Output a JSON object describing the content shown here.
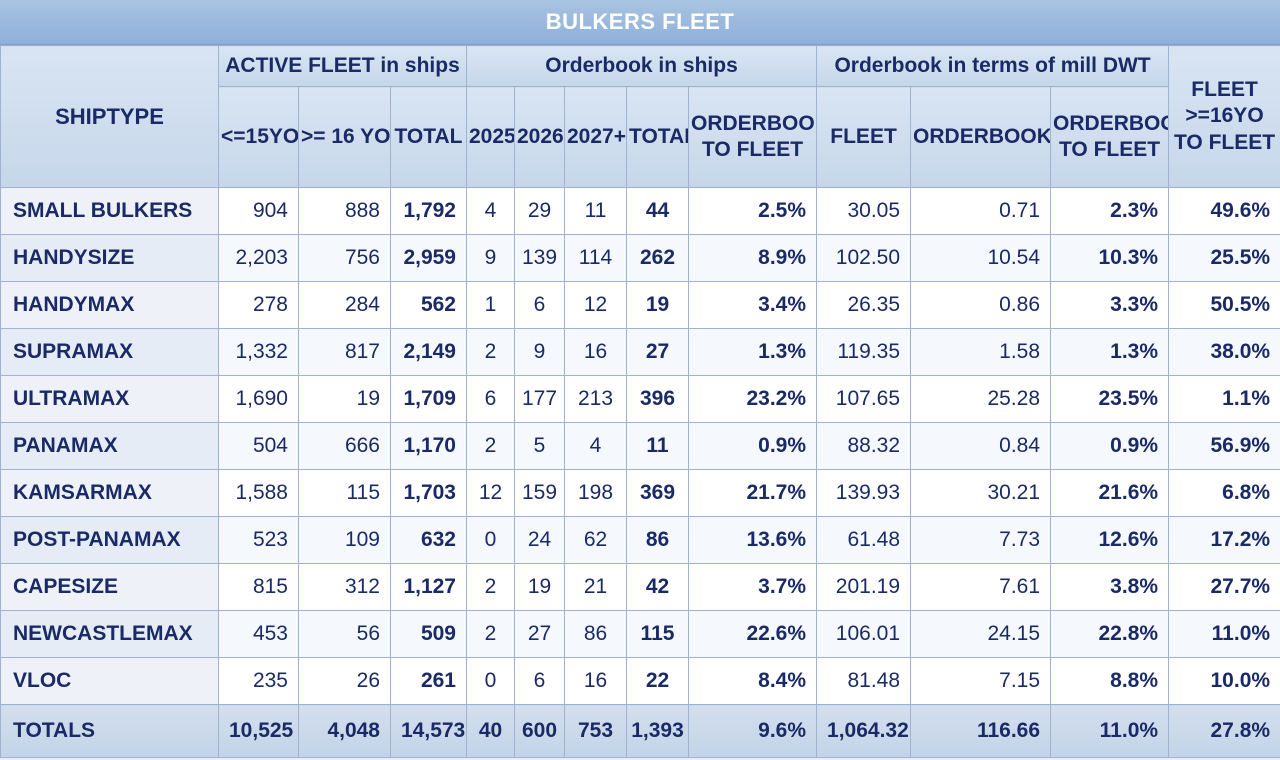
{
  "title": "BULKERS FLEET",
  "header": {
    "shiptype": "SHIPTYPE",
    "group_active": "ACTIVE FLEET in ships",
    "group_orderbook_ships": "Orderbook in ships",
    "group_orderbook_dwt": "Orderbook in terms of mill DWT",
    "fleet_ratio": "FLEET >=16YO TO FLEET",
    "le15": "<=15YO",
    "ge16": ">= 16 YO",
    "total": "TOTAL",
    "y2025": "2025",
    "y2026": "2026",
    "y2027": "2027+",
    "ob_total": "TOTAL",
    "ob_to_fleet": "ORDERBOOK TO FLEET",
    "dwt_fleet": "FLEET",
    "dwt_orderbook": "ORDERBOOK",
    "dwt_ob_to_fleet": "ORDERBOOK TO FLEET"
  },
  "rows": [
    {
      "name": "SMALL BULKERS",
      "le15": "904",
      "ge16": "888",
      "total": "1,792",
      "y2025": "4",
      "y2026": "29",
      "y2027": "11",
      "ob_total": "44",
      "ob_pct": "2.5%",
      "dwt_fleet": "30.05",
      "dwt_ob": "0.71",
      "dwt_pct": "2.3%",
      "old_pct": "49.6%"
    },
    {
      "name": "HANDYSIZE",
      "le15": "2,203",
      "ge16": "756",
      "total": "2,959",
      "y2025": "9",
      "y2026": "139",
      "y2027": "114",
      "ob_total": "262",
      "ob_pct": "8.9%",
      "dwt_fleet": "102.50",
      "dwt_ob": "10.54",
      "dwt_pct": "10.3%",
      "old_pct": "25.5%"
    },
    {
      "name": "HANDYMAX",
      "le15": "278",
      "ge16": "284",
      "total": "562",
      "y2025": "1",
      "y2026": "6",
      "y2027": "12",
      "ob_total": "19",
      "ob_pct": "3.4%",
      "dwt_fleet": "26.35",
      "dwt_ob": "0.86",
      "dwt_pct": "3.3%",
      "old_pct": "50.5%"
    },
    {
      "name": "SUPRAMAX",
      "le15": "1,332",
      "ge16": "817",
      "total": "2,149",
      "y2025": "2",
      "y2026": "9",
      "y2027": "16",
      "ob_total": "27",
      "ob_pct": "1.3%",
      "dwt_fleet": "119.35",
      "dwt_ob": "1.58",
      "dwt_pct": "1.3%",
      "old_pct": "38.0%"
    },
    {
      "name": "ULTRAMAX",
      "le15": "1,690",
      "ge16": "19",
      "total": "1,709",
      "y2025": "6",
      "y2026": "177",
      "y2027": "213",
      "ob_total": "396",
      "ob_pct": "23.2%",
      "dwt_fleet": "107.65",
      "dwt_ob": "25.28",
      "dwt_pct": "23.5%",
      "old_pct": "1.1%"
    },
    {
      "name": "PANAMAX",
      "le15": "504",
      "ge16": "666",
      "total": "1,170",
      "y2025": "2",
      "y2026": "5",
      "y2027": "4",
      "ob_total": "11",
      "ob_pct": "0.9%",
      "dwt_fleet": "88.32",
      "dwt_ob": "0.84",
      "dwt_pct": "0.9%",
      "old_pct": "56.9%"
    },
    {
      "name": "KAMSARMAX",
      "le15": "1,588",
      "ge16": "115",
      "total": "1,703",
      "y2025": "12",
      "y2026": "159",
      "y2027": "198",
      "ob_total": "369",
      "ob_pct": "21.7%",
      "dwt_fleet": "139.93",
      "dwt_ob": "30.21",
      "dwt_pct": "21.6%",
      "old_pct": "6.8%"
    },
    {
      "name": "POST-PANAMAX",
      "le15": "523",
      "ge16": "109",
      "total": "632",
      "y2025": "0",
      "y2026": "24",
      "y2027": "62",
      "ob_total": "86",
      "ob_pct": "13.6%",
      "dwt_fleet": "61.48",
      "dwt_ob": "7.73",
      "dwt_pct": "12.6%",
      "old_pct": "17.2%"
    },
    {
      "name": "CAPESIZE",
      "le15": "815",
      "ge16": "312",
      "total": "1,127",
      "y2025": "2",
      "y2026": "19",
      "y2027": "21",
      "ob_total": "42",
      "ob_pct": "3.7%",
      "dwt_fleet": "201.19",
      "dwt_ob": "7.61",
      "dwt_pct": "3.8%",
      "old_pct": "27.7%"
    },
    {
      "name": "NEWCASTLEMAX",
      "le15": "453",
      "ge16": "56",
      "total": "509",
      "y2025": "2",
      "y2026": "27",
      "y2027": "86",
      "ob_total": "115",
      "ob_pct": "22.6%",
      "dwt_fleet": "106.01",
      "dwt_ob": "24.15",
      "dwt_pct": "22.8%",
      "old_pct": "11.0%"
    },
    {
      "name": "VLOC",
      "le15": "235",
      "ge16": "26",
      "total": "261",
      "y2025": "0",
      "y2026": "6",
      "y2027": "16",
      "ob_total": "22",
      "ob_pct": "8.4%",
      "dwt_fleet": "81.48",
      "dwt_ob": "7.15",
      "dwt_pct": "8.8%",
      "old_pct": "10.0%"
    }
  ],
  "totals": {
    "name": "TOTALS",
    "le15": "10,525",
    "ge16": "4,048",
    "total": "14,573",
    "y2025": "40",
    "y2026": "600",
    "y2027": "753",
    "ob_total": "1,393",
    "ob_pct": "9.6%",
    "dwt_fleet": "1,064.32",
    "dwt_ob": "116.66",
    "dwt_pct": "11.0%",
    "old_pct": "27.8%"
  },
  "colors": {
    "header_bg": "#c6d6ea",
    "title_bg": "#8eb0d8",
    "text": "#1a2a66"
  }
}
